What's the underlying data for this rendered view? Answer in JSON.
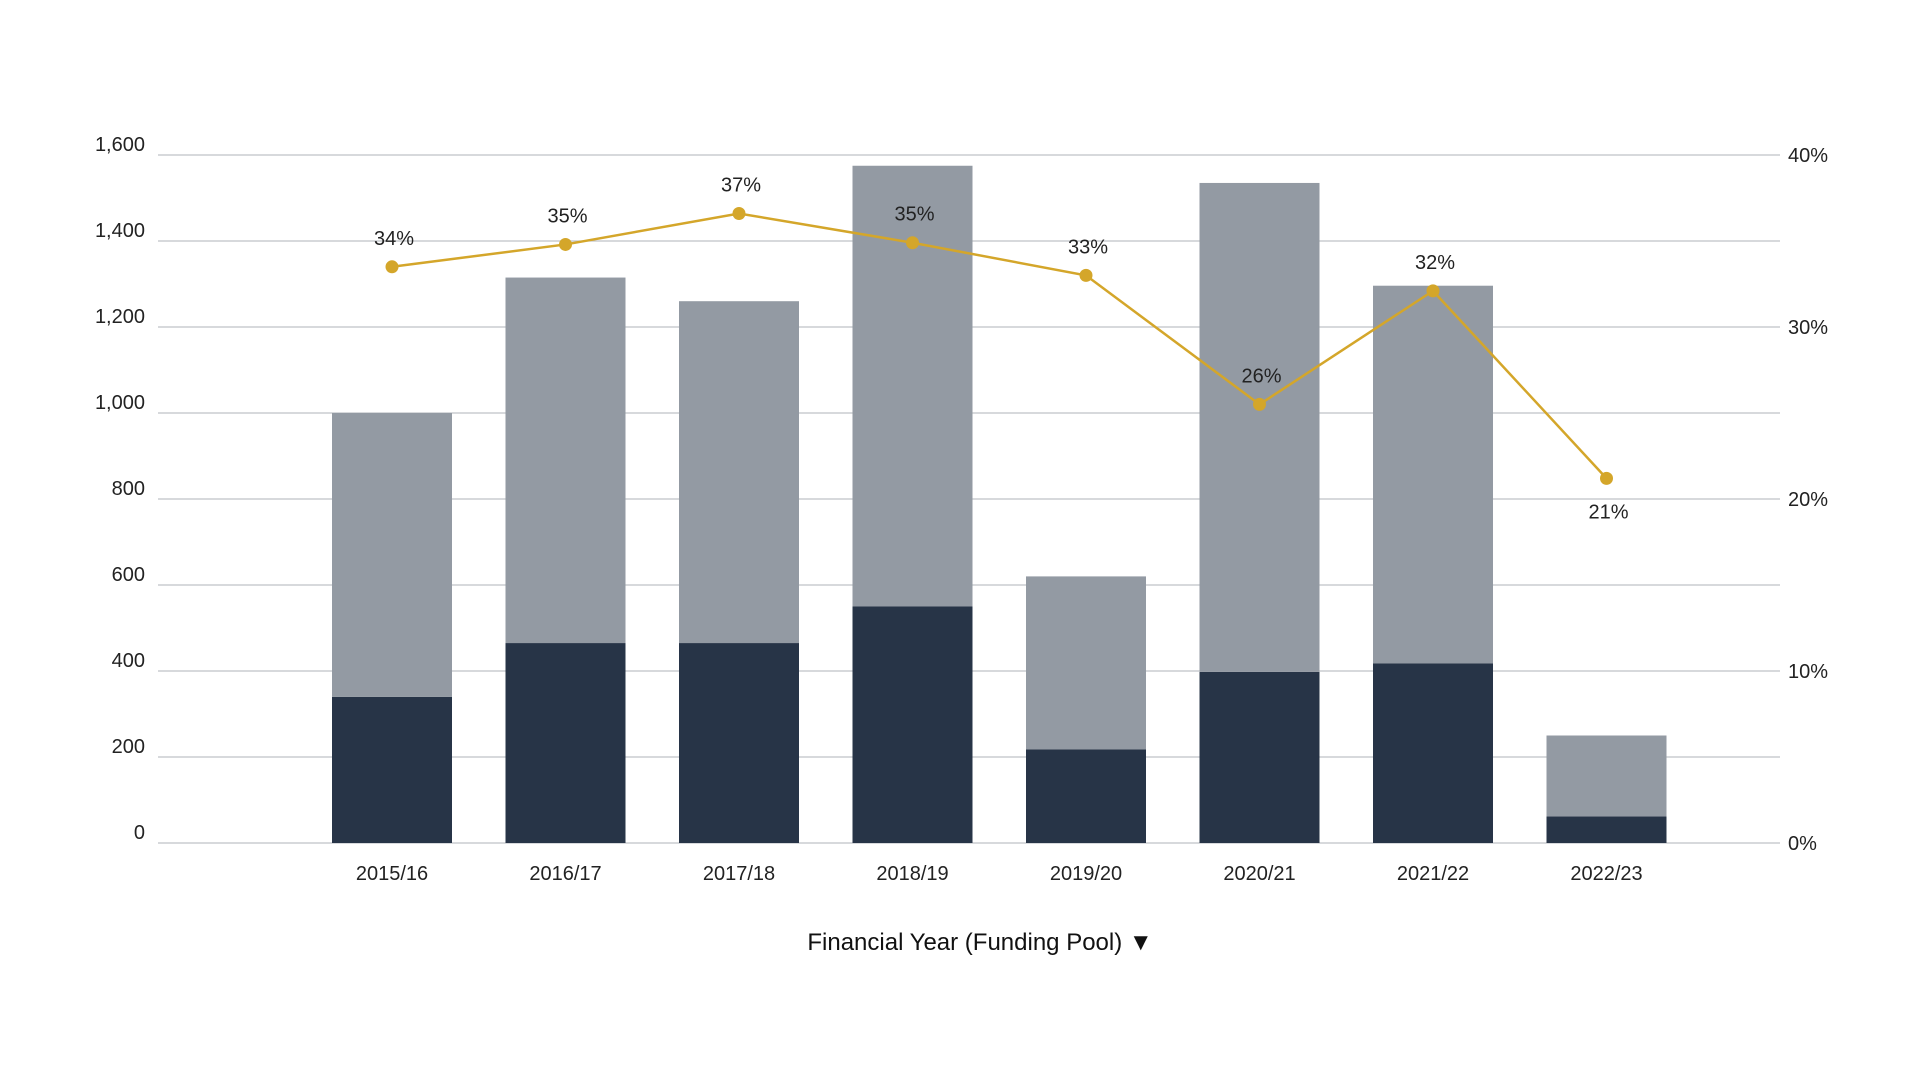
{
  "chart_data": {
    "type": "bar",
    "stacked": true,
    "categories": [
      "2015/16",
      "2016/17",
      "2017/18",
      "2018/19",
      "2019/20",
      "2020/21",
      "2021/22",
      "2022/23"
    ],
    "series": [
      {
        "values": [
          340,
          465,
          465,
          550,
          218,
          398,
          418,
          62
        ],
        "color": "#273447"
      },
      {
        "values": [
          660,
          850,
          795,
          1025,
          402,
          1137,
          878,
          188
        ],
        "color": "#939aa3"
      }
    ],
    "totals": [
      1000,
      1315,
      1260,
      1575,
      620,
      1535,
      1296,
      250
    ],
    "line_series": {
      "type": "line",
      "axis": "right",
      "color": "#d4a62a",
      "values": [
        33.5,
        34.8,
        36.6,
        34.9,
        33.0,
        25.5,
        32.1,
        21.2
      ],
      "labels": [
        "34%",
        "35%",
        "37%",
        "35%",
        "33%",
        "26%",
        "32%",
        "21%"
      ]
    },
    "xlabel": "Financial Year (Funding Pool) ▼",
    "y_left": {
      "ylim": [
        0,
        1600
      ],
      "ticks": [
        "0",
        "200",
        "400",
        "600",
        "800",
        "1,000",
        "1,200",
        "1,400",
        "1,600"
      ]
    },
    "y_right": {
      "ylim": [
        0,
        40
      ],
      "ticks": [
        "0%",
        "10%",
        "20%",
        "30%",
        "40%"
      ]
    },
    "grid": true,
    "grid_color": "#bfc2c6"
  }
}
